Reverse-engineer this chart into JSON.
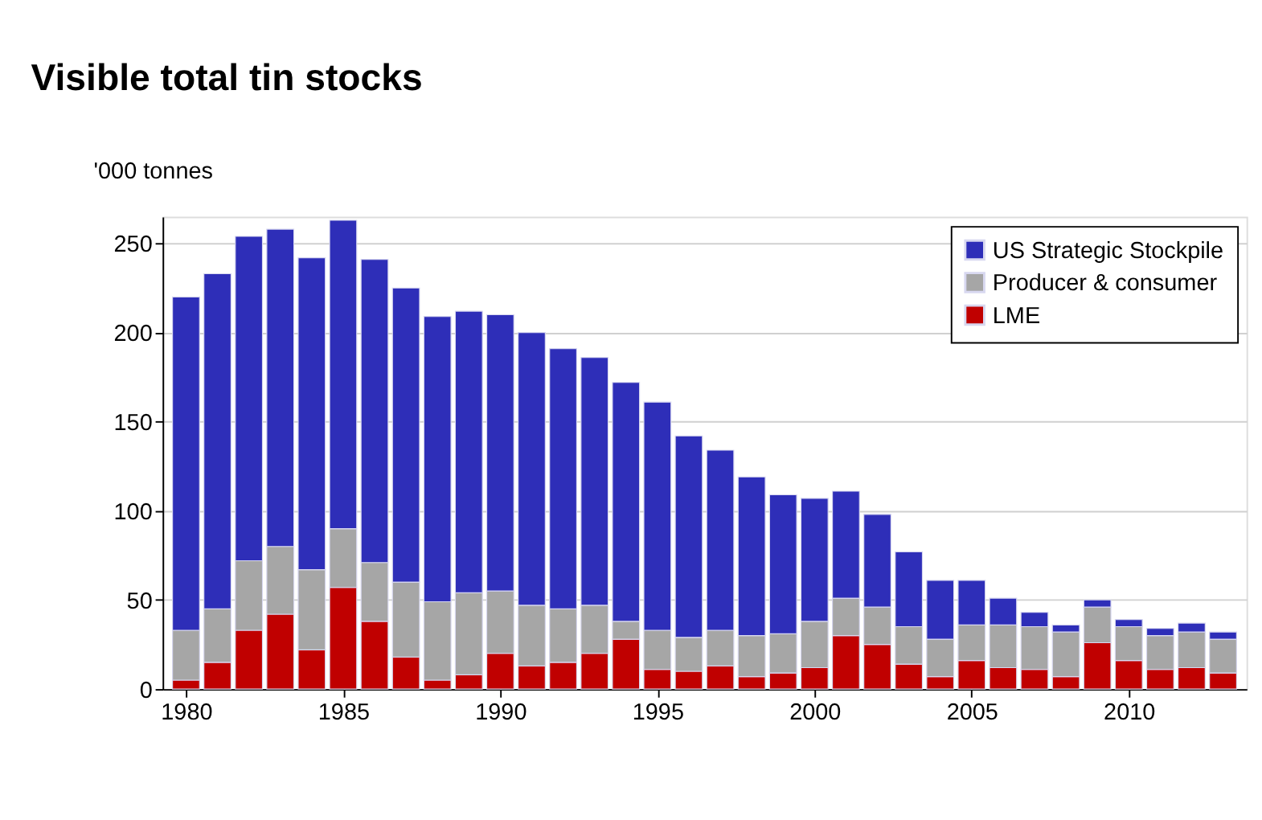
{
  "chart_data": {
    "type": "bar",
    "title": "Visible total tin stocks",
    "ylabel": "'000 tonnes",
    "stacked": true,
    "x": [
      1980,
      1981,
      1982,
      1983,
      1984,
      1985,
      1986,
      1987,
      1988,
      1989,
      1990,
      1991,
      1992,
      1993,
      1994,
      1995,
      1996,
      1997,
      1998,
      1999,
      2000,
      2001,
      2002,
      2003,
      2004,
      2005,
      2006,
      2007,
      2008,
      2009,
      2010,
      2011,
      2012,
      2013
    ],
    "series": [
      {
        "name": "LME",
        "color": "#c00000",
        "values": [
          5,
          15,
          33,
          42,
          22,
          57,
          38,
          18,
          5,
          8,
          20,
          13,
          15,
          20,
          28,
          11,
          10,
          13,
          7,
          9,
          12,
          30,
          25,
          14,
          7,
          16,
          12,
          11,
          7,
          26,
          16,
          11,
          12,
          9
        ]
      },
      {
        "name": "Producer & consumer",
        "color": "#a6a6a6",
        "values": [
          28,
          30,
          39,
          38,
          45,
          33,
          33,
          42,
          44,
          46,
          35,
          34,
          30,
          27,
          10,
          22,
          19,
          20,
          23,
          22,
          26,
          21,
          21,
          21,
          21,
          20,
          24,
          24,
          25,
          20,
          19,
          19,
          20,
          19
        ]
      },
      {
        "name": "US Strategic Stockpile",
        "color": "#2e2eb8",
        "values": [
          187,
          188,
          182,
          178,
          175,
          173,
          170,
          165,
          160,
          158,
          155,
          153,
          146,
          139,
          134,
          128,
          113,
          101,
          89,
          78,
          69,
          60,
          52,
          42,
          33,
          25,
          15,
          8,
          4,
          4,
          4,
          4,
          5,
          4
        ]
      }
    ],
    "xlim": [
      1979.5,
      2013.5
    ],
    "xticks": [
      1980,
      1985,
      1990,
      1995,
      2000,
      2005,
      2010
    ],
    "ylim": [
      0,
      265
    ],
    "yticks": [
      0,
      50,
      100,
      150,
      200,
      250
    ],
    "grid": "y",
    "legend": "top right"
  }
}
